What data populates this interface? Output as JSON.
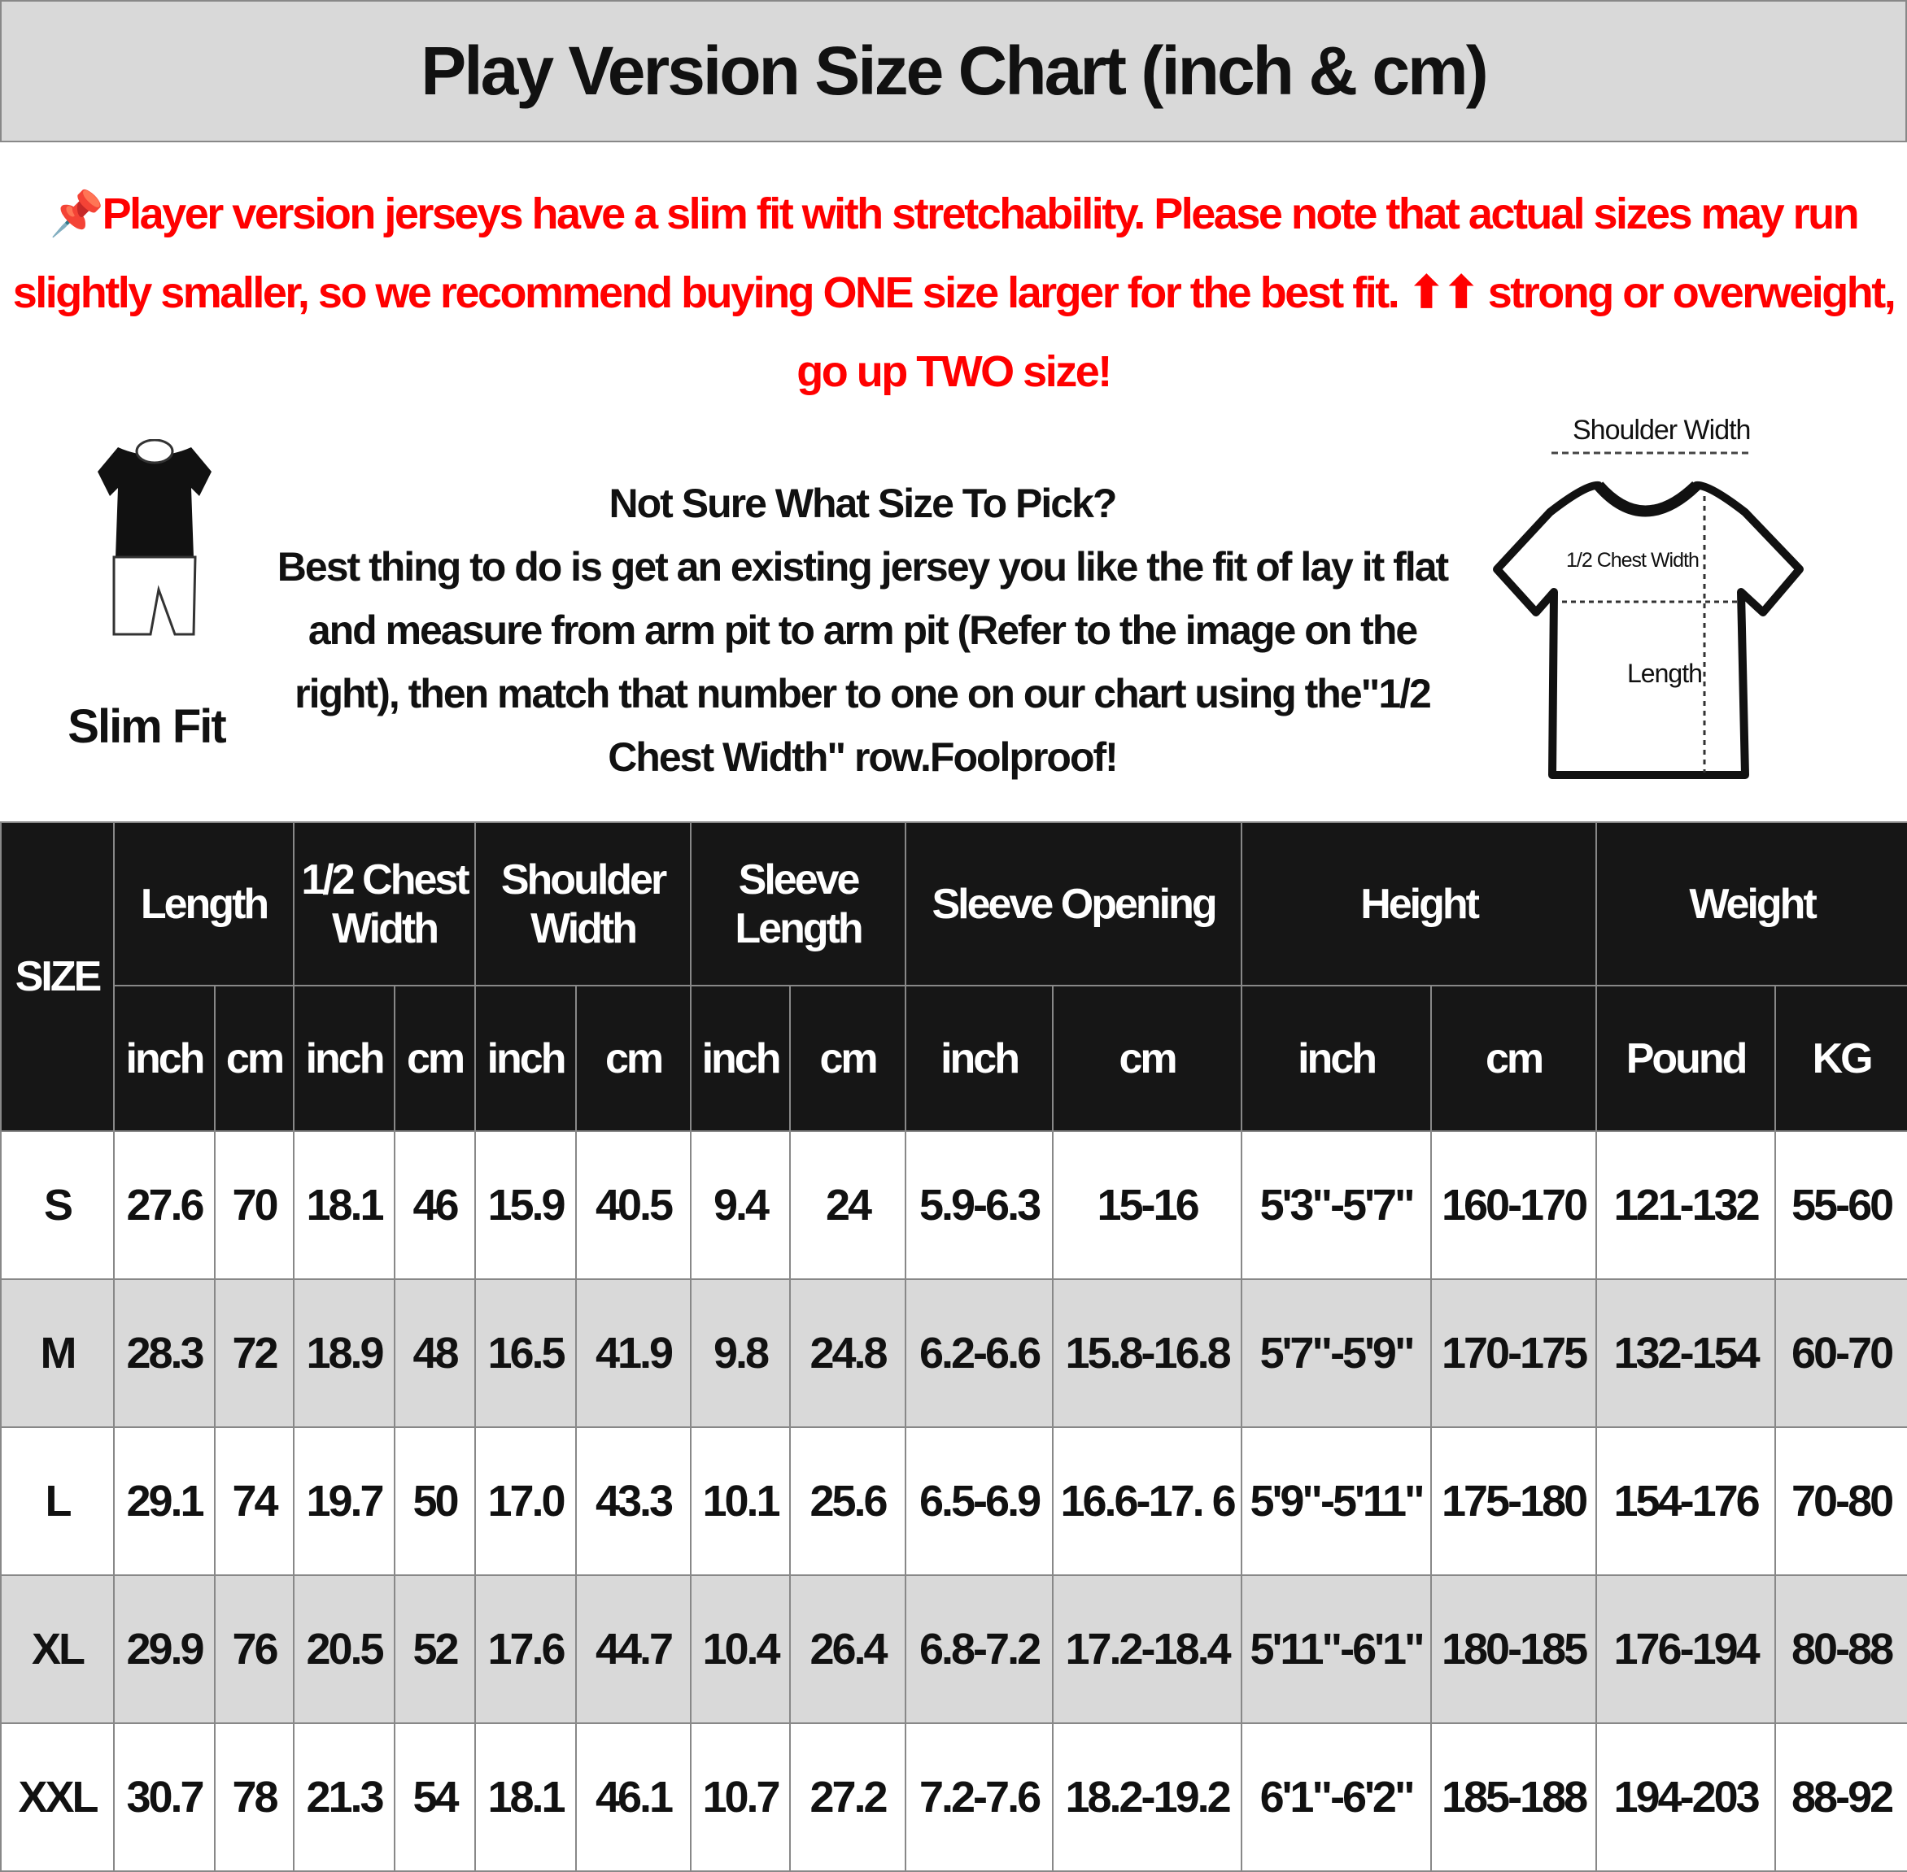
{
  "title": "Play Version Size Chart (inch & cm)",
  "notice": {
    "icon": "pushpin-icon",
    "text": "Player version jerseys have a slim fit with stretchability. Please note that actual sizes may run slightly smaller, so we recommend buying ONE size larger for the best fit. ⬆⬆ strong or overweight, go up TWO size!",
    "color": "#ff0000"
  },
  "fit_label": "Slim Fit",
  "tip": {
    "heading": "Not Sure What Size To Pick?",
    "body": "Best thing to do is get an existing jersey you like the fit of lay it flat and measure from arm pit to arm pit (Refer to the image on the right), then match that number to one on our chart using the\"1/2 Chest Width\" row.Foolproof!"
  },
  "diagram": {
    "shoulder": "Shoulder Width",
    "chest": "1/2 Chest Width",
    "length": "Length"
  },
  "table": {
    "size_header": "SIZE",
    "groups": [
      "Length",
      "1/2 Chest Width",
      "Shoulder Width",
      "Sleeve Length",
      "Sleeve Opening",
      "Height",
      "Weight"
    ],
    "units": [
      "inch",
      "cm",
      "inch",
      "cm",
      "inch",
      "cm",
      "inch",
      "cm",
      "inch",
      "cm",
      "inch",
      "cm",
      "Pound",
      "KG"
    ],
    "rows": [
      [
        "S",
        "27.6",
        "70",
        "18.1",
        "46",
        "15.9",
        "40.5",
        "9.4",
        "24",
        "5.9-6.3",
        "15-16",
        "5'3\"-5'7\"",
        "160-170",
        "121-132",
        "55-60"
      ],
      [
        "M",
        "28.3",
        "72",
        "18.9",
        "48",
        "16.5",
        "41.9",
        "9.8",
        "24.8",
        "6.2-6.6",
        "15.8-16.8",
        "5'7\"-5'9\"",
        "170-175",
        "132-154",
        "60-70"
      ],
      [
        "L",
        "29.1",
        "74",
        "19.7",
        "50",
        "17.0",
        "43.3",
        "10.1",
        "25.6",
        "6.5-6.9",
        "16.6-17. 6",
        "5'9\"-5'11\"",
        "175-180",
        "154-176",
        "70-80"
      ],
      [
        "XL",
        "29.9",
        "76",
        "20.5",
        "52",
        "17.6",
        "44.7",
        "10.4",
        "26.4",
        "6.8-7.2",
        "17.2-18.4",
        "5'11\"-6'1\"",
        "180-185",
        "176-194",
        "80-88"
      ],
      [
        "XXL",
        "30.7",
        "78",
        "21.3",
        "54",
        "18.1",
        "46.1",
        "10.7",
        "27.2",
        "7.2-7.6",
        "18.2-19.2",
        "6'1\"-6'2\"",
        "185-188",
        "194-203",
        "88-92"
      ]
    ]
  }
}
